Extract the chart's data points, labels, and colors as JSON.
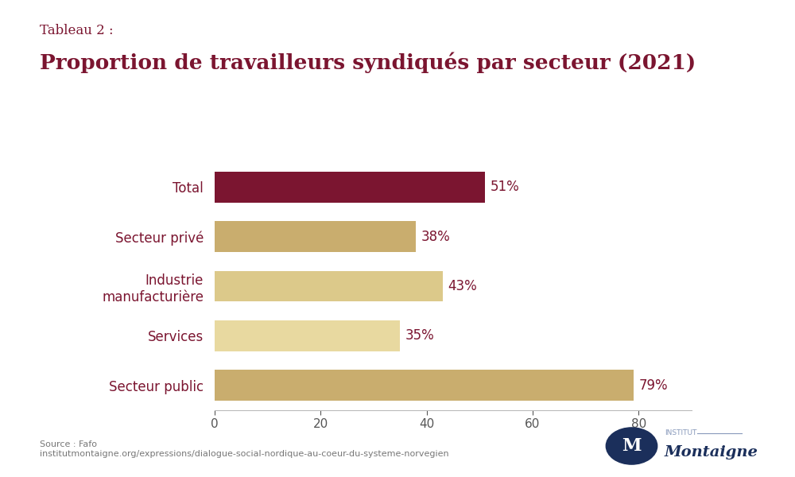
{
  "tableau_label": "Tableau 2 :",
  "title": "Proportion de travailleurs syndiqués par secteur (2021)",
  "categories": [
    "Total",
    "Secteur privé",
    "Industrie\nmanufacturière",
    "Services",
    "Secteur public"
  ],
  "values": [
    51,
    38,
    43,
    35,
    79
  ],
  "labels": [
    "51%",
    "38%",
    "43%",
    "35%",
    "79%"
  ],
  "bar_colors": [
    "#7B1530",
    "#C9AD6E",
    "#DCC98A",
    "#E8D9A0",
    "#C9AD6E"
  ],
  "title_color": "#7B1530",
  "label_color": "#7B1530",
  "ytick_color": "#7B1530",
  "axis_color": "#555555",
  "source_text": "Source : Fafo\ninstitutmontaigne.org/expressions/dialogue-social-nordique-au-coeur-du-systeme-norvegien",
  "background_color": "#FFFFFF",
  "xlim": [
    0,
    90
  ],
  "xticks": [
    0,
    20,
    40,
    60,
    80
  ]
}
